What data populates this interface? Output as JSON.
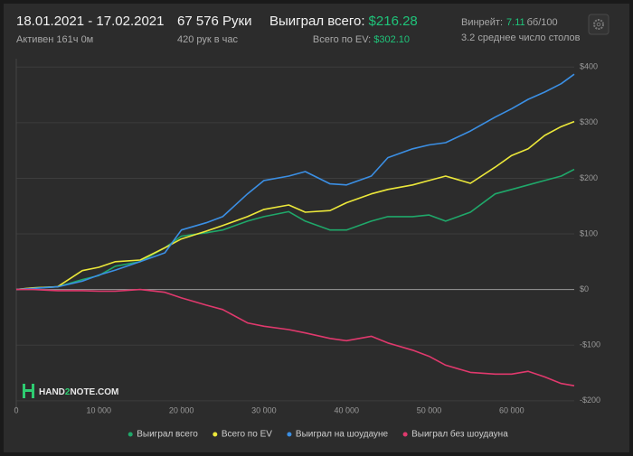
{
  "header": {
    "date_range": "18.01.2021 - 17.02.2021",
    "active_time": "Активен 161ч 0м",
    "hands": "67 576 Руки",
    "hands_per_hour": "420 рук в час",
    "won_total_label": "Выиграл всего:",
    "won_total_value": "$216.28",
    "ev_total_label": "Всего по EV:",
    "ev_total_value": "$302.10",
    "winrate_label": "Винрейт:",
    "winrate_value": "7.11",
    "winrate_unit": "бб/100",
    "avg_tables": "3.2 среднее число столов"
  },
  "watermark": {
    "part1": "HAND",
    "part2": "2",
    "part3": "NOTE.COM"
  },
  "chart_data": {
    "type": "line",
    "x": [
      0,
      2000,
      5000,
      8000,
      10000,
      12000,
      15000,
      18000,
      20000,
      23000,
      25000,
      28000,
      30000,
      33000,
      35000,
      38000,
      40000,
      43000,
      45000,
      48000,
      50000,
      52000,
      55000,
      58000,
      60000,
      62000,
      64000,
      66000,
      67576
    ],
    "series": [
      {
        "name": "Выиграл всего",
        "color": "#1fa86a",
        "values": [
          0,
          3,
          5,
          18,
          25,
          42,
          50,
          75,
          96,
          102,
          107,
          123,
          131,
          140,
          123,
          107,
          107,
          123,
          131,
          131,
          134,
          123,
          139,
          172,
          180,
          188,
          196,
          204,
          216
        ]
      },
      {
        "name": "Всего по EV",
        "color": "#ece83a",
        "values": [
          0,
          3,
          5,
          34,
          40,
          50,
          53,
          75,
          91,
          105,
          115,
          131,
          144,
          152,
          139,
          142,
          156,
          172,
          180,
          188,
          196,
          204,
          191,
          220,
          241,
          253,
          277,
          293,
          302
        ]
      },
      {
        "name": "Выиграл на шоудауне",
        "color": "#3b8fe4",
        "values": [
          0,
          2,
          5,
          15,
          26,
          35,
          50,
          66,
          107,
          120,
          131,
          172,
          196,
          204,
          212,
          190,
          188,
          204,
          237,
          253,
          260,
          264,
          285,
          310,
          325,
          342,
          355,
          370,
          387
        ]
      },
      {
        "name": "Выиграл без шоудауна",
        "color": "#e0396d",
        "values": [
          0,
          0,
          -2,
          -2,
          -3,
          -3,
          0,
          -5,
          -15,
          -28,
          -36,
          -60,
          -66,
          -72,
          -78,
          -88,
          -92,
          -84,
          -96,
          -109,
          -120,
          -136,
          -149,
          -152,
          -152,
          -147,
          -157,
          -169,
          -173
        ]
      }
    ],
    "xlim": [
      0,
      67576
    ],
    "xticks": [
      0,
      {
        "value": 10000,
        "label": "10 000"
      },
      {
        "value": 20000,
        "label": "20 000"
      },
      {
        "value": 30000,
        "label": "30 000"
      },
      {
        "value": 40000,
        "label": "40 000"
      },
      {
        "value": 50000,
        "label": "50 000"
      },
      {
        "value": 60000,
        "label": "60 000"
      }
    ],
    "ylim": [
      -210,
      415
    ],
    "yticks": [
      {
        "value": -200,
        "label": "-$200"
      },
      {
        "value": -100,
        "label": "-$100"
      },
      {
        "value": 0,
        "label": "$0"
      },
      {
        "value": 100,
        "label": "$100"
      },
      {
        "value": 200,
        "label": "$200"
      },
      {
        "value": 300,
        "label": "$300"
      },
      {
        "value": 400,
        "label": "$400"
      }
    ],
    "grid": true,
    "legend": "bottom"
  }
}
